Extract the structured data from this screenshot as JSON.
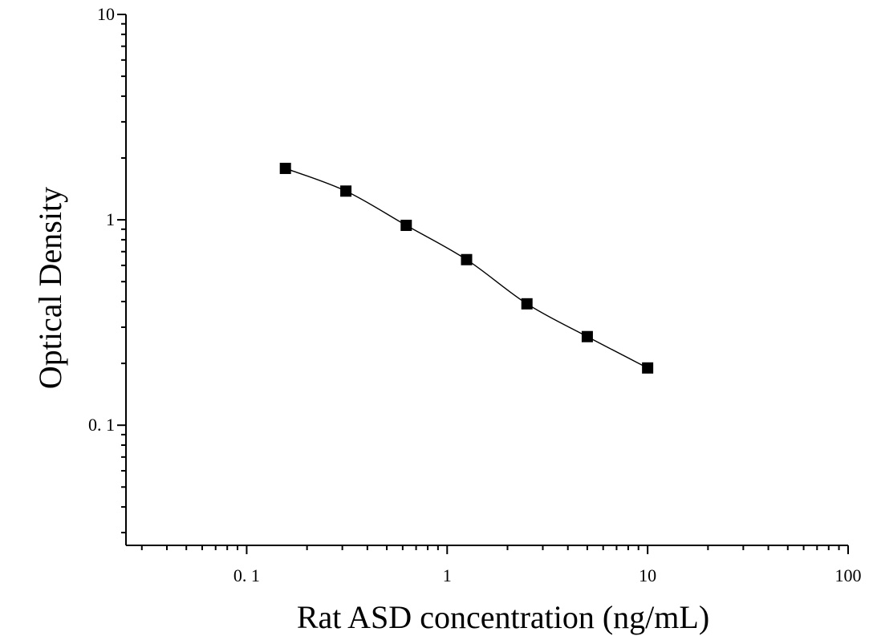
{
  "chart_data": {
    "type": "scatter",
    "xlabel": "Rat ASD concentration (ng/mL)",
    "ylabel": "Optical Density",
    "xscale": "log",
    "yscale": "log",
    "xlim": [
      0.025,
      100
    ],
    "ylim": [
      0.026,
      10
    ],
    "x_ticks": [
      {
        "value": 0.1,
        "label": "0. 1"
      },
      {
        "value": 1,
        "label": "1"
      },
      {
        "value": 10,
        "label": "10"
      },
      {
        "value": 100,
        "label": "100"
      }
    ],
    "y_ticks": [
      {
        "value": 0.1,
        "label": "0. 1"
      },
      {
        "value": 1,
        "label": "1"
      },
      {
        "value": 10,
        "label": "10"
      }
    ],
    "grid": false,
    "legend": "none",
    "marker": "square",
    "color": "#000000",
    "points": [
      {
        "x": 0.156,
        "y": 1.78
      },
      {
        "x": 0.3125,
        "y": 1.38
      },
      {
        "x": 0.625,
        "y": 0.94
      },
      {
        "x": 1.25,
        "y": 0.64
      },
      {
        "x": 2.5,
        "y": 0.39
      },
      {
        "x": 5,
        "y": 0.27
      },
      {
        "x": 10,
        "y": 0.19
      }
    ],
    "fit_curve": "4-parameter logistic"
  }
}
